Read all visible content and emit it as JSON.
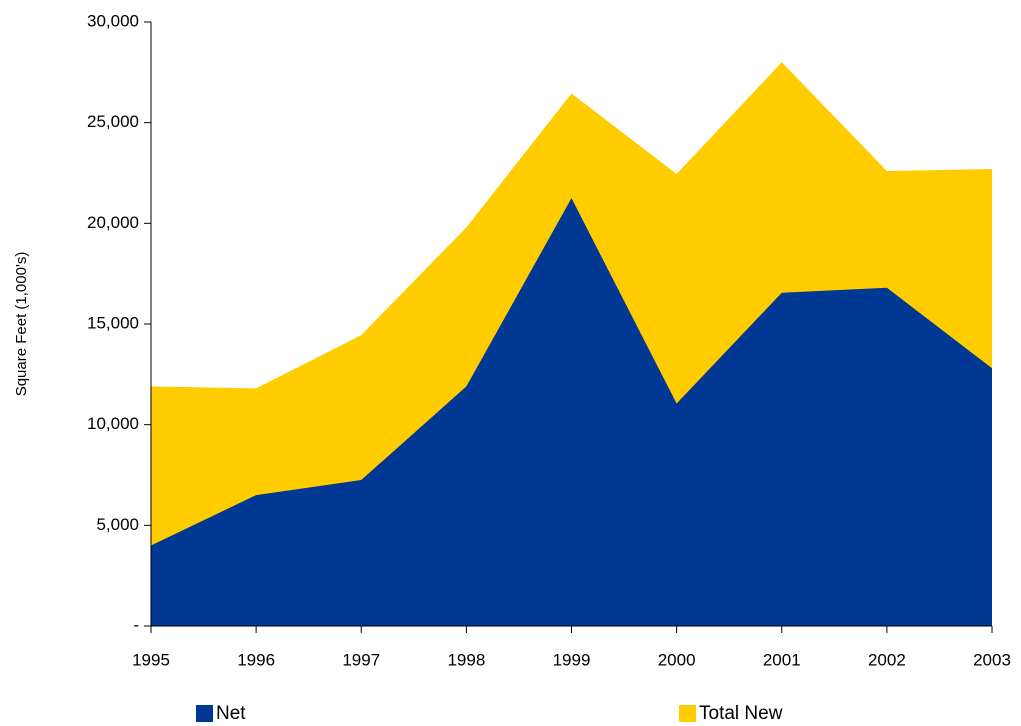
{
  "chart_data": {
    "type": "area",
    "y_label": "Square Feet (1,000's)",
    "categories": [
      "1995",
      "1996",
      "1997",
      "1998",
      "1999",
      "2000",
      "2001",
      "2002",
      "2003"
    ],
    "series": [
      {
        "name": "Net",
        "color": "#003893",
        "values": [
          4000,
          6500,
          7250,
          11900,
          21250,
          11050,
          16550,
          16800,
          12800
        ]
      },
      {
        "name": "Total New",
        "color": "#ffcc00",
        "values": [
          11900,
          11800,
          14450,
          19800,
          26450,
          22450,
          28000,
          22600,
          22700
        ]
      }
    ],
    "ylim": [
      0,
      30000
    ],
    "yticks": [
      {
        "value": 0,
        "label": "-"
      },
      {
        "value": 5000,
        "label": "5,000"
      },
      {
        "value": 10000,
        "label": "10,000"
      },
      {
        "value": 15000,
        "label": "15,000"
      },
      {
        "value": 20000,
        "label": "20,000"
      },
      {
        "value": 25000,
        "label": "25,000"
      },
      {
        "value": 30000,
        "label": "30,000"
      }
    ],
    "legend": "bottom"
  }
}
